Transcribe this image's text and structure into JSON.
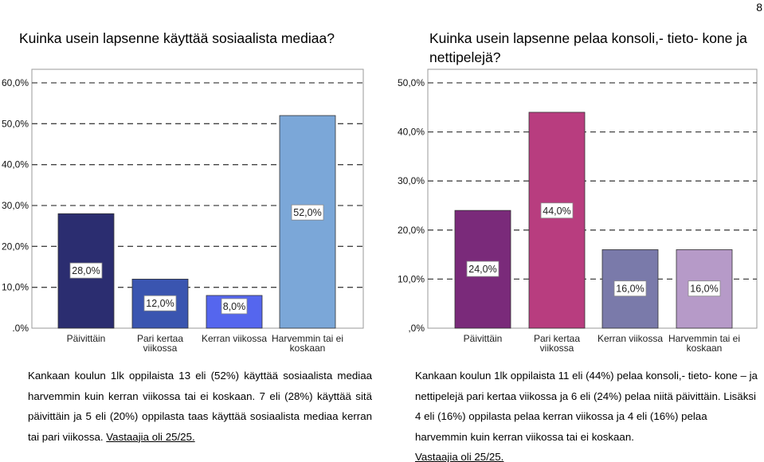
{
  "page_number": "8",
  "left": {
    "heading": "Kuinka usein lapsenne käyttää sosiaalista mediaa?",
    "caption": "Kankaan koulun 1lk oppilaista 13 eli (52%) käyttää sosiaalista mediaa harvemmin kuin kerran viikossa tai ei koskaan. 7 eli (28%) käyttää sitä päivittäin ja 5 eli (20%) oppilasta taas käyttää sosiaalista mediaa kerran tai pari viikossa.",
    "source": "Vastaajia oli 25/25."
  },
  "right": {
    "heading": "Kuinka usein lapsenne pelaa konsoli,- tieto- kone ja nettipelejä?",
    "caption": "Kankaan koulun 1lk oppilaista 11 eli (44%) pelaa konsoli,- tieto- kone – ja nettipelejä pari kertaa viikossa ja 6 eli (24%) pelaa niitä päivittäin. Lisäksi 4 eli (16%) oppilasta pelaa kerran viikossa ja 4 eli (16%) pelaa harvemmin kuin kerran viikossa tai ei koskaan.",
    "source": "Vastaajia oli 25/25."
  },
  "chart_data": [
    {
      "type": "bar",
      "title": "Kuinka usein lapsenne käyttää sosiaalista mediaa?",
      "categories": [
        [
          "Päivittäin"
        ],
        [
          "Pari kertaa",
          "viikossa"
        ],
        [
          "Kerran viikossa"
        ],
        [
          "Harvemmin tai ei",
          "koskaan"
        ]
      ],
      "values": [
        28,
        12,
        8,
        52
      ],
      "value_labels": [
        "28,0%",
        "12,0%",
        "8,0%",
        "52,0%"
      ],
      "colors": [
        "#2b2d70",
        "#3a55b0",
        "#5566ee",
        "#7ba7d8"
      ],
      "y_ticks": [
        ".0%",
        "10,0%",
        "20,0%",
        "30,0%",
        "40,0%",
        "50,0%",
        "60,0%"
      ],
      "ylim": [
        0,
        60
      ],
      "grid": true
    },
    {
      "type": "bar",
      "title": "Kuinka usein lapsenne pelaa konsoli,- tietokone ja nettipelejä?",
      "categories": [
        [
          "Päivittäin"
        ],
        [
          "Pari kertaa",
          "viikossa"
        ],
        [
          "Kerran viikossa"
        ],
        [
          "Harvemmin tai ei",
          "koskaan"
        ]
      ],
      "values": [
        24,
        44,
        16,
        16
      ],
      "value_labels": [
        "24,0%",
        "44,0%",
        "16,0%",
        "16,0%"
      ],
      "colors": [
        "#7a2a7a",
        "#b83d7f",
        "#7a7aaa",
        "#b69ac8"
      ],
      "y_ticks": [
        ",0%",
        "10,0%",
        "20,0%",
        "30,0%",
        "40,0%",
        "50,0%"
      ],
      "ylim": [
        0,
        50
      ],
      "grid": true
    }
  ]
}
